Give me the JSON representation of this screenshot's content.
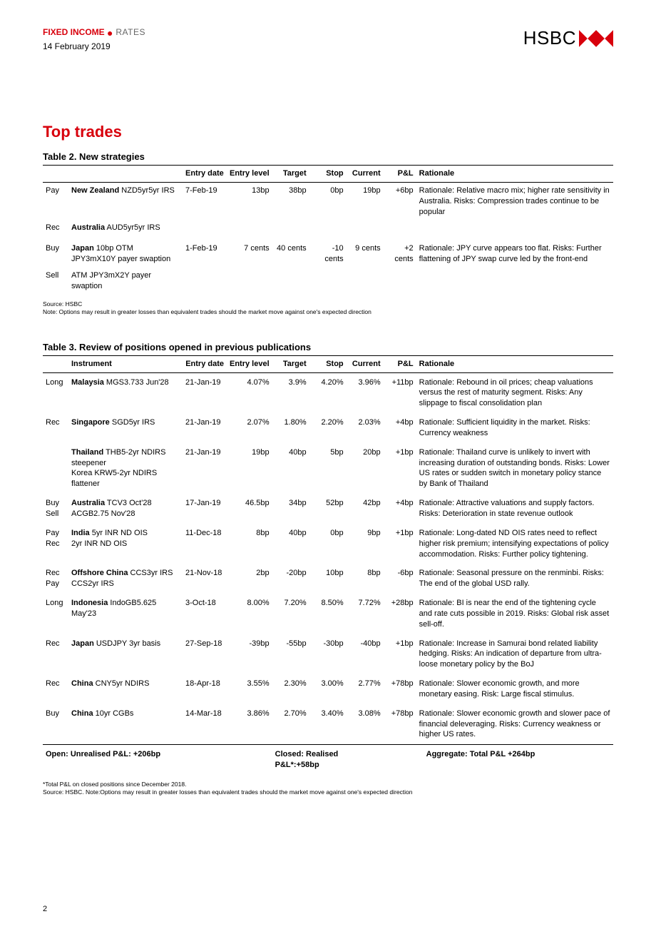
{
  "header": {
    "category_prefix": "FIXED INCOME",
    "category_suffix": "RATES",
    "date": "14 February 2019",
    "brand": "HSBC"
  },
  "section_title": "Top trades",
  "table2": {
    "title": "Table 2. New strategies",
    "columns": [
      "",
      "",
      "Entry date",
      "Entry level",
      "Target",
      "Stop",
      "Current",
      "P&L",
      "Rationale"
    ],
    "rows": [
      {
        "side": "Pay",
        "instr_bold": "New Zealand",
        "instr_rest": " NZD5yr5yr IRS",
        "entry_date": "7-Feb-19",
        "entry_level": "13bp",
        "target": "38bp",
        "stop": "0bp",
        "current": "19bp",
        "pnl": "+6bp",
        "rationale": "Rationale: Relative macro mix; higher rate sensitivity in Australia. Risks: Compression trades continue to be popular"
      },
      {
        "side": "Rec",
        "instr_bold": "Australia",
        "instr_rest": " AUD5yr5yr IRS",
        "entry_date": "",
        "entry_level": "",
        "target": "",
        "stop": "",
        "current": "",
        "pnl": "",
        "rationale": ""
      },
      {
        "side": "Buy",
        "instr_bold": "Japan",
        "instr_rest": " 10bp OTM JPY3mX10Y payer swaption",
        "entry_date": "1-Feb-19",
        "entry_level": "7 cents",
        "target": "40 cents",
        "stop": "-10 cents",
        "current": "9 cents",
        "pnl": "+2 cents",
        "rationale": "Rationale: JPY curve appears too flat. Risks: Further flattening of JPY swap curve led by the front-end"
      },
      {
        "side": "Sell",
        "instr_bold": "",
        "instr_rest": "ATM JPY3mX2Y payer swaption",
        "entry_date": "",
        "entry_level": "",
        "target": "",
        "stop": "",
        "current": "",
        "pnl": "",
        "rationale": ""
      }
    ],
    "source1": "Source: HSBC",
    "source2": "Note: Options may result in greater losses than equivalent trades should the market move against one's expected direction"
  },
  "table3": {
    "title": "Table 3. Review of positions opened in previous publications",
    "columns": [
      "",
      "Instrument",
      "Entry date",
      "Entry level",
      "Target",
      "Stop",
      "Current",
      "P&L",
      "Rationale"
    ],
    "rows": [
      {
        "side": "Long",
        "instr_bold": "Malaysia",
        "instr_rest": " MGS3.733 Jun'28",
        "entry_date": "21-Jan-19",
        "entry_level": "4.07%",
        "target": "3.9%",
        "stop": "4.20%",
        "current": "3.96%",
        "pnl": "+11bp",
        "rationale": "Rationale: Rebound in oil prices; cheap valuations versus the rest of maturity segment. Risks: Any slippage to fiscal consolidation plan"
      },
      {
        "side": "Rec",
        "instr_bold": "Singapore",
        "instr_rest": " SGD5yr IRS",
        "entry_date": "21-Jan-19",
        "entry_level": "2.07%",
        "target": "1.80%",
        "stop": "2.20%",
        "current": "2.03%",
        "pnl": "+4bp",
        "rationale": "Rationale: Sufficient liquidity in the market. Risks: Currency weakness"
      },
      {
        "side": "",
        "instr_bold": "Thailand",
        "instr_rest": " THB5-2yr NDIRS steepener\nKorea KRW5-2yr NDIRS flattener",
        "entry_date": "21-Jan-19",
        "entry_level": "19bp",
        "target": "40bp",
        "stop": "5bp",
        "current": "20bp",
        "pnl": "+1bp",
        "rationale": "Rationale: Thailand curve is unlikely to invert with increasing duration of outstanding bonds.  Risks: Lower US rates or sudden switch in monetary policy stance by Bank of Thailand"
      },
      {
        "side": "Buy Sell",
        "instr_bold": "Australia",
        "instr_rest": " TCV3 Oct'28\nACGB2.75 Nov'28",
        "entry_date": "17-Jan-19",
        "entry_level": "46.5bp",
        "target": "34bp",
        "stop": "52bp",
        "current": "42bp",
        "pnl": "+4bp",
        "rationale": "Rationale: Attractive valuations and supply factors. Risks: Deterioration in state revenue outlook"
      },
      {
        "side": "Pay Rec",
        "instr_bold": "India",
        "instr_rest": " 5yr INR ND OIS\n2yr INR ND OIS",
        "entry_date": "11-Dec-18",
        "entry_level": "8bp",
        "target": "40bp",
        "stop": "0bp",
        "current": "9bp",
        "pnl": "+1bp",
        "rationale": "Rationale: Long-dated ND OIS rates need to reflect higher risk premium; intensifying expectations of policy accommodation. Risks: Further policy tightening."
      },
      {
        "side": "Rec Pay",
        "instr_bold": "Offshore China",
        "instr_rest": " CCS3yr IRS\nCCS2yr IRS",
        "entry_date": "21-Nov-18",
        "entry_level": "2bp",
        "target": "-20bp",
        "stop": "10bp",
        "current": "8bp",
        "pnl": "-6bp",
        "rationale": "Rationale: Seasonal pressure on the renminbi. Risks: The end of the global USD rally."
      },
      {
        "side": "Long",
        "instr_bold": "Indonesia",
        "instr_rest": " IndoGB5.625 May'23",
        "entry_date": "3-Oct-18",
        "entry_level": "8.00%",
        "target": "7.20%",
        "stop": "8.50%",
        "current": "7.72%",
        "pnl": "+28bp",
        "rationale": "Rationale: BI is near the end of the tightening cycle and rate cuts possible in 2019. Risks: Global risk asset sell-off."
      },
      {
        "side": "Rec",
        "instr_bold": "Japan",
        "instr_rest": " USDJPY 3yr basis",
        "entry_date": "27-Sep-18",
        "entry_level": "-39bp",
        "target": "-55bp",
        "stop": "-30bp",
        "current": "-40bp",
        "pnl": "+1bp",
        "rationale": "Rationale: Increase in Samurai bond related liability hedging. Risks: An indication of departure from ultra-loose monetary policy by the BoJ"
      },
      {
        "side": "Rec",
        "instr_bold": "China",
        "instr_rest": " CNY5yr NDIRS",
        "entry_date": "18-Apr-18",
        "entry_level": "3.55%",
        "target": "2.30%",
        "stop": "3.00%",
        "current": "2.77%",
        "pnl": "+78bp",
        "rationale": "Rationale: Slower economic growth, and more monetary easing. Risk: Large fiscal stimulus."
      },
      {
        "side": "Buy",
        "instr_bold": "China",
        "instr_rest": " 10yr CGBs",
        "entry_date": "14-Mar-18",
        "entry_level": "3.86%",
        "target": "2.70%",
        "stop": "3.40%",
        "current": "3.08%",
        "pnl": "+78bp",
        "rationale": "Rationale: Slower economic growth and slower pace of financial deleveraging. Risks: Currency weakness or higher US rates."
      }
    ],
    "summary": {
      "open": "Open: Unrealised P&L: +206bp",
      "closed": "Closed: Realised P&L*:+58bp",
      "aggregate": "Aggregate: Total P&L +264bp"
    },
    "note1": "*Total P&L on closed positions since December 2018.",
    "note2": "Source: HSBC. Note:Options may result in greater losses than equivalent trades should the market move against one's expected direction"
  },
  "page_number": "2",
  "colors": {
    "accent": "#d8000c",
    "text": "#000000",
    "muted": "#666666",
    "bg": "#ffffff"
  }
}
